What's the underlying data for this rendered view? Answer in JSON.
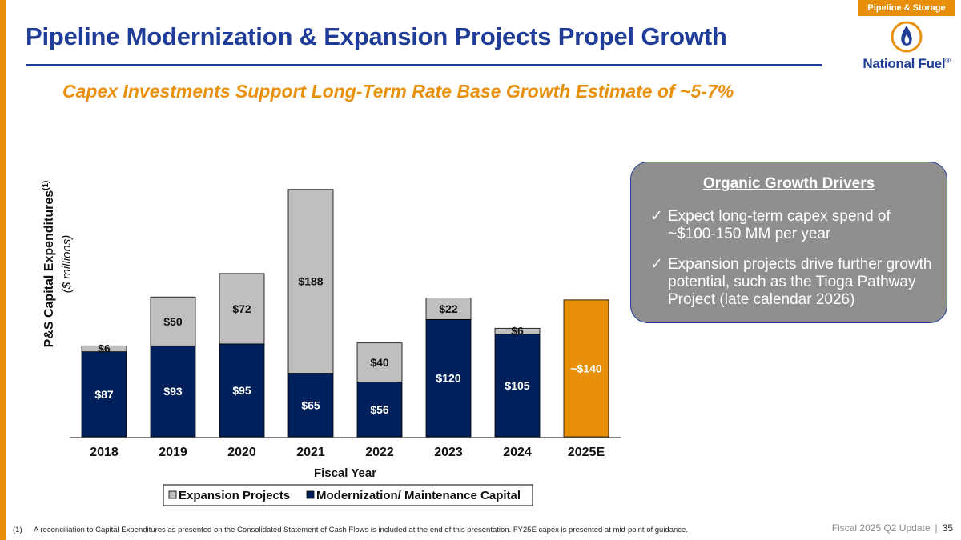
{
  "header": {
    "section_tag": "Pipeline & Storage",
    "title": "Pipeline Modernization & Expansion Projects Propel Growth",
    "subtitle": "Capex Investments Support Long-Term Rate Base Growth Estimate of ~5-7%",
    "logo_text": "National Fuel",
    "logo_mark": "®"
  },
  "colors": {
    "accent_orange": "#e8900c",
    "brand_blue": "#1f3c99",
    "modernization_navy": "#00205b",
    "expansion_gray": "#bfbfbf",
    "estimate_orange": "#e8900c"
  },
  "chart_data": {
    "type": "bar",
    "stacked": true,
    "ylabel": "P&S Capital Expenditures",
    "ylabel_sup": "(1)",
    "ylabel_sub": "($ millions)",
    "xlabel": "Fiscal Year",
    "categories": [
      "2018",
      "2019",
      "2020",
      "2021",
      "2022",
      "2023",
      "2024",
      "2025E"
    ],
    "ylim": [
      0,
      270
    ],
    "series": [
      {
        "name": "Modernization/ Maintenance Capital",
        "color": "#00205b",
        "values": [
          87,
          93,
          95,
          65,
          56,
          120,
          105,
          null
        ],
        "labels": [
          "$87",
          "$93",
          "$95",
          "$65",
          "$56",
          "$120",
          "$105",
          ""
        ]
      },
      {
        "name": "Expansion Projects",
        "color": "#bfbfbf",
        "values": [
          6,
          50,
          72,
          188,
          40,
          22,
          6,
          null
        ],
        "labels": [
          "$6",
          "$50",
          "$72",
          "$188",
          "$40",
          "$22",
          "$6",
          ""
        ]
      }
    ],
    "estimate": {
      "category": "2025E",
      "value": 140,
      "label": "~$140",
      "color": "#e8900c"
    },
    "legend": {
      "placement": "bottom-center",
      "entries": [
        "Expansion Projects",
        "Modernization/ Maintenance Capital"
      ]
    }
  },
  "drivers": {
    "title": "Organic Growth Drivers",
    "check": "✓",
    "items": [
      "Expect long-term capex spend of ~$100-150 MM per year",
      "Expansion projects drive further growth potential, such as the Tioga Pathway Project (late calendar 2026)"
    ]
  },
  "footer": {
    "footnote_num": "(1)",
    "footnote": "A reconciliation to Capital Expenditures as presented on the Consolidated Statement of Cash Flows is included at the end of this presentation. FY25E capex is presented at mid-point of guidance.",
    "update": "Fiscal 2025 Q2 Update",
    "separator": "|",
    "page": "35"
  }
}
